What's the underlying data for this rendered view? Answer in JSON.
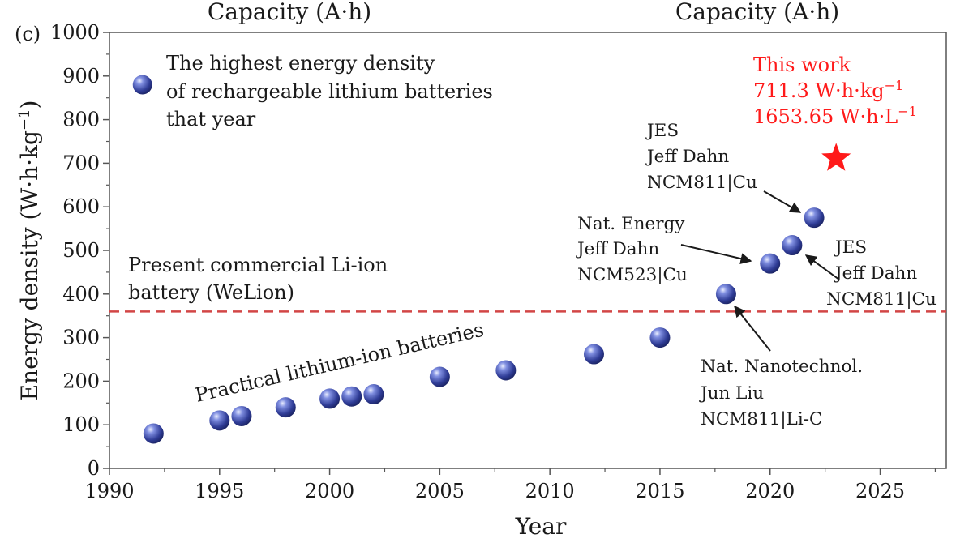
{
  "panel_label": "(c)",
  "top_axis_labels": [
    "Capacity (A·h)",
    "Capacity (A·h)"
  ],
  "legend": {
    "lines": [
      "The highest energy density",
      "of rechargeable lithium batteries",
      "that year"
    ]
  },
  "colors": {
    "point": "#2f3c96",
    "highlight_star": "#ff1a1a",
    "highlight_text": "#ff1a1a",
    "commercial_line": "#d24646"
  },
  "chart_data": {
    "type": "scatter",
    "xlabel": "Year",
    "ylabel_main": "Energy density (W·h·kg",
    "ylabel_sup": "−1",
    "ylabel_end": ")",
    "xlim": [
      1990,
      2028
    ],
    "ylim": [
      0,
      1000
    ],
    "xticks": [
      1990,
      1995,
      2000,
      2005,
      2010,
      2015,
      2020,
      2025
    ],
    "yticks": [
      0,
      100,
      200,
      300,
      400,
      500,
      600,
      700,
      800,
      900,
      1000
    ],
    "points": [
      {
        "x": 1992,
        "y": 80
      },
      {
        "x": 1995,
        "y": 110
      },
      {
        "x": 1996,
        "y": 120
      },
      {
        "x": 1998,
        "y": 140
      },
      {
        "x": 2000,
        "y": 160
      },
      {
        "x": 2001,
        "y": 165
      },
      {
        "x": 2002,
        "y": 170
      },
      {
        "x": 2005,
        "y": 210
      },
      {
        "x": 2008,
        "y": 225
      },
      {
        "x": 2012,
        "y": 262
      },
      {
        "x": 2015,
        "y": 300
      },
      {
        "x": 2018,
        "y": 400
      },
      {
        "x": 2020,
        "y": 470
      },
      {
        "x": 2021,
        "y": 512
      },
      {
        "x": 2022,
        "y": 575
      }
    ],
    "legend_marker": {
      "x": 1991.5,
      "y": 880
    },
    "highlight": {
      "x": 2023,
      "y": 711.3,
      "lines": [
        "This work",
        "711.3 W·h·kg",
        "1653.65 W·h·L"
      ],
      "sup": [
        "",
        "−1",
        "−1"
      ]
    },
    "reference_line": {
      "y": 360,
      "lines": [
        "Present commercial Li-ion",
        "battery (WeLion)"
      ]
    },
    "trend_label": "Practical lithium-ion batteries",
    "annotations": [
      {
        "lines": [
          "JES",
          "Jeff Dahn",
          "NCM811|Cu"
        ],
        "target_x": 2022,
        "target_y": 575
      },
      {
        "lines": [
          "Nat. Energy",
          "Jeff Dahn",
          "NCM523|Cu"
        ],
        "target_x": 2020,
        "target_y": 470
      },
      {
        "lines": [
          "JES",
          "Jeff Dahn",
          "NCM811|Cu"
        ],
        "target_x": 2021,
        "target_y": 512
      },
      {
        "lines": [
          "Nat. Nanotechnol.",
          "Jun Liu",
          "NCM811|Li-C"
        ],
        "target_x": 2018,
        "target_y": 400
      }
    ]
  }
}
